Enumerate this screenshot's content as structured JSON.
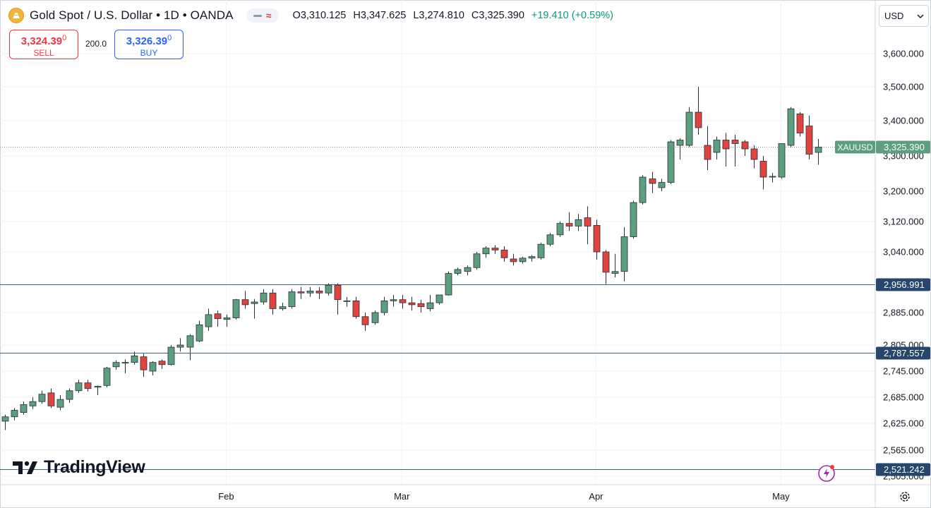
{
  "header": {
    "title": "Gold Spot / U.S. Dollar • 1D • OANDA",
    "ohlc": {
      "open": "O3,310.125",
      "high": "H3,347.625",
      "low": "L3,274.810",
      "close": "C3,325.390",
      "change": "+19.410 (+0.59%)"
    }
  },
  "trade": {
    "sell_price": "3,324.39",
    "sell_sup": "0",
    "sell_label": "SELL",
    "spread": "200.0",
    "buy_price": "3,326.39",
    "buy_sup": "0",
    "buy_label": "BUY"
  },
  "currency": "USD",
  "brand": "TradingView",
  "colors": {
    "up": "#5b9f7f",
    "down": "#e0443e",
    "hline": "#3e5f8a",
    "label_bg": "#26466b",
    "last_price": "#5b9f7f"
  },
  "chart_data": {
    "type": "candlestick",
    "title": "Gold Spot / U.S. Dollar • 1D • OANDA",
    "symbol": "XAUUSD",
    "last_price": "3,325.390",
    "y_tick_labels": [
      "3,600.000",
      "3,500.000",
      "3,400.000",
      "3,300.000",
      "3,200.000",
      "3,120.000",
      "3,040.000",
      "2,885.000",
      "2,805.000",
      "2,745.000",
      "2,685.000",
      "2,625.000",
      "2,565.000",
      "2,505.000"
    ],
    "x_tick_labels": [
      {
        "label": "Feb",
        "index": 24
      },
      {
        "label": "Mar",
        "index": 43
      },
      {
        "label": "Apr",
        "index": 64
      },
      {
        "label": "May",
        "index": 84
      }
    ],
    "horizontal_lines": [
      {
        "label": "2,956.991",
        "value": 2956.991
      },
      {
        "label": "2,787.557",
        "value": 2787.557
      },
      {
        "label": "2,521.242",
        "value": 2521.242
      }
    ],
    "candles": [
      [
        2630,
        2645,
        2610,
        2640
      ],
      [
        2640,
        2660,
        2632,
        2655
      ],
      [
        2650,
        2675,
        2645,
        2668
      ],
      [
        2665,
        2685,
        2658,
        2675
      ],
      [
        2675,
        2700,
        2670,
        2692
      ],
      [
        2695,
        2705,
        2660,
        2665
      ],
      [
        2662,
        2690,
        2655,
        2680
      ],
      [
        2680,
        2705,
        2672,
        2700
      ],
      [
        2700,
        2725,
        2695,
        2718
      ],
      [
        2718,
        2725,
        2698,
        2705
      ],
      [
        2708,
        2712,
        2690,
        2710
      ],
      [
        2712,
        2755,
        2708,
        2752
      ],
      [
        2755,
        2770,
        2748,
        2765
      ],
      [
        2765,
        2772,
        2740,
        2765
      ],
      [
        2765,
        2790,
        2760,
        2780
      ],
      [
        2778,
        2785,
        2732,
        2748
      ],
      [
        2745,
        2768,
        2735,
        2765
      ],
      [
        2768,
        2772,
        2750,
        2760
      ],
      [
        2760,
        2805,
        2758,
        2800
      ],
      [
        2800,
        2822,
        2790,
        2805
      ],
      [
        2800,
        2832,
        2770,
        2828
      ],
      [
        2815,
        2865,
        2812,
        2855
      ],
      [
        2850,
        2895,
        2840,
        2880
      ],
      [
        2882,
        2890,
        2850,
        2870
      ],
      [
        2868,
        2880,
        2850,
        2872
      ],
      [
        2872,
        2920,
        2868,
        2918
      ],
      [
        2918,
        2940,
        2895,
        2905
      ],
      [
        2908,
        2920,
        2870,
        2912
      ],
      [
        2912,
        2945,
        2905,
        2935
      ],
      [
        2935,
        2945,
        2880,
        2895
      ],
      [
        2895,
        2910,
        2890,
        2900
      ],
      [
        2900,
        2945,
        2895,
        2938
      ],
      [
        2938,
        2950,
        2920,
        2935
      ],
      [
        2935,
        2950,
        2925,
        2940
      ],
      [
        2940,
        2950,
        2920,
        2935
      ],
      [
        2935,
        2960,
        2928,
        2955
      ],
      [
        2955,
        2960,
        2880,
        2918
      ],
      [
        2915,
        2925,
        2900,
        2915
      ],
      [
        2915,
        2925,
        2870,
        2875
      ],
      [
        2875,
        2885,
        2840,
        2855
      ],
      [
        2860,
        2890,
        2855,
        2885
      ],
      [
        2885,
        2925,
        2878,
        2915
      ],
      [
        2915,
        2930,
        2900,
        2918
      ],
      [
        2918,
        2930,
        2895,
        2910
      ],
      [
        2910,
        2925,
        2890,
        2905
      ],
      [
        2908,
        2918,
        2885,
        2900
      ],
      [
        2895,
        2930,
        2888,
        2910
      ],
      [
        2910,
        2930,
        2905,
        2930
      ],
      [
        2930,
        2990,
        2928,
        2985
      ],
      [
        2985,
        3000,
        2980,
        2995
      ],
      [
        2990,
        3005,
        2980,
        3000
      ],
      [
        3000,
        3040,
        2995,
        3035
      ],
      [
        3035,
        3055,
        3025,
        3050
      ],
      [
        3050,
        3058,
        3035,
        3045
      ],
      [
        3045,
        3055,
        3015,
        3025
      ],
      [
        3022,
        3035,
        3005,
        3015
      ],
      [
        3015,
        3028,
        3010,
        3024
      ],
      [
        3024,
        3032,
        3015,
        3028
      ],
      [
        3025,
        3065,
        3020,
        3060
      ],
      [
        3060,
        3090,
        3055,
        3085
      ],
      [
        3085,
        3120,
        3080,
        3115
      ],
      [
        3115,
        3145,
        3095,
        3108
      ],
      [
        3108,
        3140,
        3095,
        3125
      ],
      [
        3130,
        3160,
        3060,
        3108
      ],
      [
        3110,
        3125,
        3020,
        3040
      ],
      [
        3040,
        3045,
        2958,
        2988
      ],
      [
        2985,
        3035,
        2975,
        2990
      ],
      [
        2990,
        3105,
        2965,
        3080
      ],
      [
        3080,
        3175,
        3075,
        3170
      ],
      [
        3170,
        3245,
        3165,
        3240
      ],
      [
        3235,
        3255,
        3195,
        3222
      ],
      [
        3210,
        3235,
        3200,
        3225
      ],
      [
        3225,
        3345,
        3220,
        3340
      ],
      [
        3330,
        3350,
        3290,
        3345
      ],
      [
        3330,
        3440,
        3325,
        3425
      ],
      [
        3425,
        3500,
        3360,
        3380
      ],
      [
        3330,
        3385,
        3260,
        3290
      ],
      [
        3310,
        3355,
        3290,
        3345
      ],
      [
        3345,
        3365,
        3270,
        3320
      ],
      [
        3345,
        3360,
        3270,
        3335
      ],
      [
        3340,
        3345,
        3300,
        3320
      ],
      [
        3320,
        3330,
        3265,
        3290
      ],
      [
        3285,
        3300,
        3205,
        3240
      ],
      [
        3240,
        3252,
        3225,
        3242
      ],
      [
        3240,
        3335,
        3235,
        3335
      ],
      [
        3330,
        3440,
        3325,
        3435
      ],
      [
        3420,
        3425,
        3355,
        3365
      ],
      [
        3385,
        3415,
        3290,
        3305
      ],
      [
        3310,
        3348,
        3275,
        3325
      ]
    ]
  }
}
